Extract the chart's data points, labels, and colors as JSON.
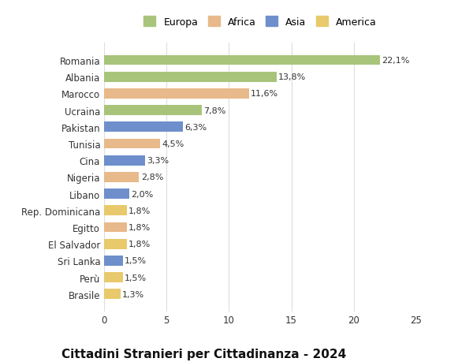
{
  "categories": [
    "Brasile",
    "Perù",
    "Sri Lanka",
    "El Salvador",
    "Egitto",
    "Rep. Dominicana",
    "Libano",
    "Nigeria",
    "Cina",
    "Tunisia",
    "Pakistan",
    "Ucraina",
    "Marocco",
    "Albania",
    "Romania"
  ],
  "values": [
    1.3,
    1.5,
    1.5,
    1.8,
    1.8,
    1.8,
    2.0,
    2.8,
    3.3,
    4.5,
    6.3,
    7.8,
    11.6,
    13.8,
    22.1
  ],
  "labels": [
    "1,3%",
    "1,5%",
    "1,5%",
    "1,8%",
    "1,8%",
    "1,8%",
    "2,0%",
    "2,8%",
    "3,3%",
    "4,5%",
    "6,3%",
    "7,8%",
    "11,6%",
    "13,8%",
    "22,1%"
  ],
  "colors": [
    "#e8c96b",
    "#e8c96b",
    "#6e8fcb",
    "#e8c96b",
    "#e8b98a",
    "#e8c96b",
    "#6e8fcb",
    "#e8b98a",
    "#6e8fcb",
    "#e8b98a",
    "#6e8fcb",
    "#a8c47a",
    "#e8b98a",
    "#a8c47a",
    "#a8c47a"
  ],
  "legend_labels": [
    "Europa",
    "Africa",
    "Asia",
    "America"
  ],
  "legend_colors": [
    "#a8c47a",
    "#e8b98a",
    "#6e8fcb",
    "#e8c96b"
  ],
  "title": "Cittadini Stranieri per Cittadinanza - 2024",
  "xlim": [
    0,
    25
  ],
  "xticks": [
    0,
    5,
    10,
    15,
    20,
    25
  ],
  "background_color": "#ffffff",
  "grid_color": "#dddddd",
  "bar_height": 0.6,
  "title_fontsize": 11,
  "subtitle_fontsize": 8,
  "label_fontsize": 8,
  "tick_fontsize": 8.5,
  "legend_fontsize": 9
}
